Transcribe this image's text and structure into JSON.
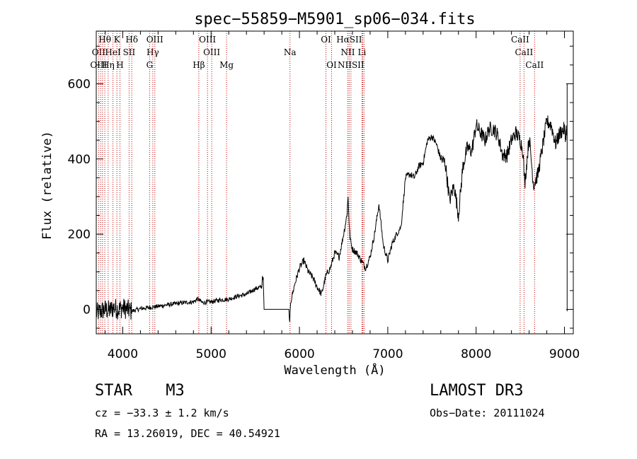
{
  "chart_data": {
    "type": "line",
    "title": "spec−55859−M5901_sp06−034.fits",
    "xlabel": "Wavelength (Å)",
    "ylabel": "Flux (relative)",
    "xlim": [
      3700,
      9100
    ],
    "ylim": [
      -65,
      740
    ],
    "xticks": [
      {
        "value": 4000,
        "label": "4000"
      },
      {
        "value": 5000,
        "label": "5000"
      },
      {
        "value": 6000,
        "label": "6000"
      },
      {
        "value": 7000,
        "label": "7000"
      },
      {
        "value": 8000,
        "label": "8000"
      },
      {
        "value": 9000,
        "label": "9000"
      }
    ],
    "yticks": [
      {
        "value": 0,
        "label": "0"
      },
      {
        "value": 200,
        "label": "200"
      },
      {
        "value": 400,
        "label": "400"
      },
      {
        "value": 600,
        "label": "600"
      }
    ],
    "grid": false,
    "series": [
      {
        "name": "spectrum",
        "x": [
          3700,
          3750,
          3800,
          3850,
          3900,
          3950,
          4000,
          4050,
          4100,
          4200,
          4300,
          4400,
          4500,
          4600,
          4700,
          4800,
          4850,
          4900,
          5000,
          5100,
          5200,
          5300,
          5400,
          5500,
          5575,
          5580,
          5590,
          5600,
          5700,
          5800,
          5880,
          5890,
          5900,
          5950,
          6000,
          6050,
          6100,
          6150,
          6200,
          6250,
          6300,
          6350,
          6400,
          6450,
          6500,
          6530,
          6540,
          6550,
          6563,
          6570,
          6580,
          6600,
          6650,
          6700,
          6750,
          6800,
          6850,
          6900,
          6950,
          7000,
          7050,
          7100,
          7150,
          7200,
          7250,
          7300,
          7350,
          7400,
          7450,
          7500,
          7550,
          7600,
          7650,
          7700,
          7750,
          7800,
          7850,
          7900,
          7950,
          8000,
          8050,
          8100,
          8150,
          8200,
          8250,
          8300,
          8350,
          8400,
          8450,
          8500,
          8530,
          8550,
          8600,
          8650,
          8700,
          8750,
          8800,
          8850,
          8900,
          8950,
          9000,
          9010,
          9020,
          9030
        ],
        "y": [
          -10,
          -5,
          0,
          -3,
          5,
          0,
          4,
          0,
          -5,
          2,
          5,
          8,
          12,
          15,
          18,
          20,
          28,
          18,
          20,
          25,
          27,
          35,
          40,
          55,
          60,
          90,
          80,
          0,
          0,
          0,
          0,
          -40,
          20,
          70,
          110,
          130,
          100,
          85,
          60,
          40,
          90,
          110,
          150,
          140,
          200,
          240,
          260,
          300,
          230,
          200,
          180,
          160,
          150,
          130,
          110,
          140,
          200,
          280,
          170,
          130,
          175,
          200,
          220,
          350,
          360,
          350,
          380,
          390,
          450,
          460,
          440,
          400,
          390,
          290,
          330,
          250,
          380,
          430,
          420,
          490,
          470,
          450,
          480,
          480,
          460,
          410,
          410,
          450,
          470,
          450,
          420,
          330,
          460,
          330,
          360,
          430,
          500,
          490,
          440,
          470,
          480,
          450,
          480,
          460
        ]
      }
    ],
    "annotations": [
      {
        "text": "Hθ",
        "x": 3797,
        "row": 0
      },
      {
        "text": "K",
        "x": 3934,
        "row": 0
      },
      {
        "text": "Hδ",
        "x": 4102,
        "row": 0
      },
      {
        "text": "OIII",
        "x": 4363,
        "row": 0
      },
      {
        "text": "OIII",
        "x": 4959,
        "row": 0
      },
      {
        "text": "OI",
        "x": 6300,
        "row": 0
      },
      {
        "text": "HαSII",
        "x": 6563,
        "row": 0
      },
      {
        "text": "CaII",
        "x": 8498,
        "row": 0
      },
      {
        "text": "OII",
        "x": 3727,
        "row": 1
      },
      {
        "text": "HeI",
        "x": 3889,
        "row": 1
      },
      {
        "text": "SII",
        "x": 4072,
        "row": 1
      },
      {
        "text": "Hγ",
        "x": 4340,
        "row": 1
      },
      {
        "text": "OIII",
        "x": 5007,
        "row": 1
      },
      {
        "text": "Na",
        "x": 5893,
        "row": 1
      },
      {
        "text": "NII",
        "x": 6548,
        "row": 1
      },
      {
        "text": "Li",
        "x": 6708,
        "row": 1
      },
      {
        "text": "CaII",
        "x": 8542,
        "row": 1
      },
      {
        "text": "OIII",
        "x": 3727,
        "row": 2
      },
      {
        "text": "Hη",
        "x": 3835,
        "row": 2
      },
      {
        "text": "H",
        "x": 3968,
        "row": 2
      },
      {
        "text": "G",
        "x": 4304,
        "row": 2
      },
      {
        "text": "Hβ",
        "x": 4861,
        "row": 2
      },
      {
        "text": "Mg",
        "x": 5175,
        "row": 2
      },
      {
        "text": "OI",
        "x": 6364,
        "row": 2
      },
      {
        "text": "NIISII",
        "x": 6583,
        "row": 2
      },
      {
        "text": "CaII",
        "x": 8662,
        "row": 2
      }
    ],
    "lines": [
      3727,
      3750,
      3771,
      3797,
      3835,
      3889,
      3934,
      3968,
      4072,
      4102,
      4304,
      4340,
      4363,
      4861,
      4959,
      5007,
      5175,
      5893,
      6300,
      6364,
      6548,
      6563,
      6583,
      6708,
      6717,
      6731,
      8498,
      8542,
      8662
    ]
  },
  "info": {
    "object_type": "STAR",
    "subclass": "M3",
    "cz": "cz = −33.3 ± 1.2 km/s",
    "radec": "RA =  13.26019, DEC =  40.54921",
    "survey": "LAMOST DR3",
    "obs_date": "Obs−Date: 20111024"
  }
}
